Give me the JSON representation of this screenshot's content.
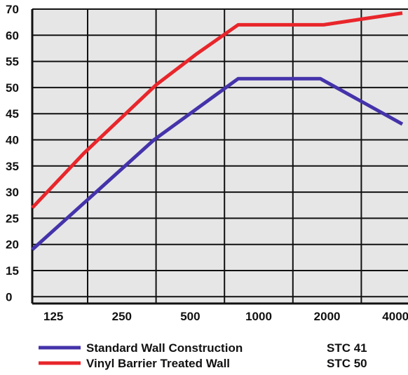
{
  "chart_data": {
    "type": "line",
    "x": [
      "125",
      "250",
      "500",
      "1000",
      "2000",
      "4000"
    ],
    "x_points": [
      {
        "label": "125",
        "index": 0
      }
    ],
    "y_ticks": [
      "70",
      "60",
      "55",
      "50",
      "45",
      "40",
      "35",
      "30",
      "25",
      "20",
      "15",
      "0"
    ],
    "series": [
      {
        "name": "Standard Wall Construction",
        "rating": "STC 41",
        "color": "#4433aa",
        "points": [
          [
            -1.0,
            19
          ],
          [
            0.97,
            40
          ],
          [
            2.2,
            51.7
          ],
          [
            3.4,
            51.7
          ],
          [
            4.6,
            43
          ]
        ]
      },
      {
        "name": "Vinyl Barrier Treated Wall",
        "rating": "STC 50",
        "color": "#e8262b",
        "points": [
          [
            -1.0,
            27
          ],
          [
            -0.05,
            37.5
          ],
          [
            1.0,
            50.5
          ],
          [
            1.6,
            56.5
          ],
          [
            2.2,
            64
          ],
          [
            3.45,
            64
          ],
          [
            4.6,
            68.5
          ]
        ]
      }
    ],
    "grid": true
  }
}
